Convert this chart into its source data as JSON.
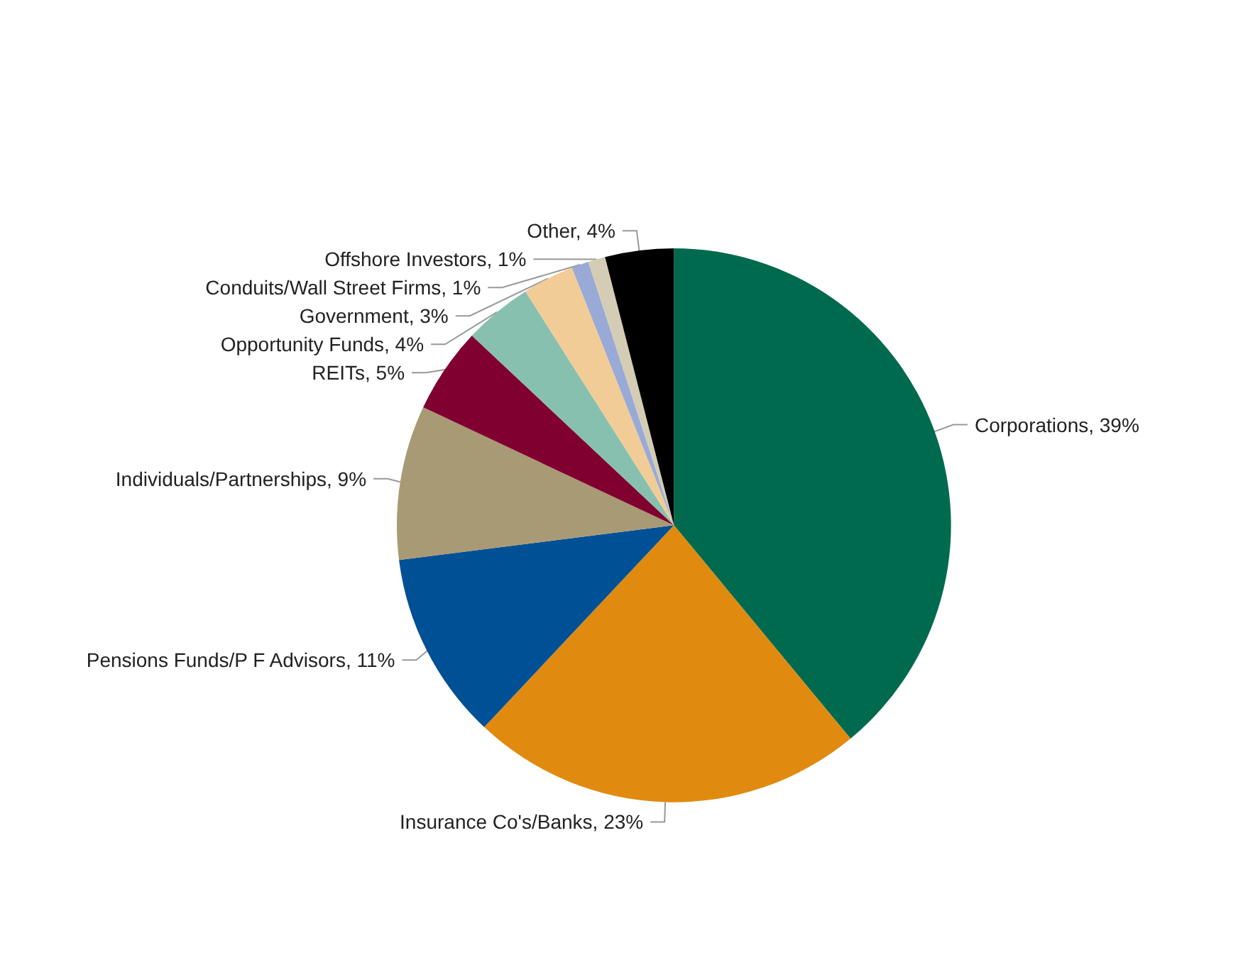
{
  "chart_data": {
    "type": "pie",
    "categories": [
      "Corporations",
      "Insurance Co's/Banks",
      "Pensions Funds/P F Advisors",
      "Individuals/Partnerships",
      "REITs",
      "Opportunity Funds",
      "Government",
      "Conduits/Wall Street Firms",
      "Offshore Investors",
      "Other"
    ],
    "values": [
      39,
      23,
      11,
      9,
      5,
      4,
      3,
      1,
      1,
      4
    ],
    "value_labels": [
      "39%",
      "23%",
      "11%",
      "9%",
      "5%",
      "4%",
      "3%",
      "1%",
      "1%",
      "4%"
    ],
    "colors": [
      "#006a4e",
      "#e08a10",
      "#005096",
      "#a89a74",
      "#800030",
      "#88c0b0",
      "#f2cc96",
      "#99aad6",
      "#d4ccb4",
      "#000000"
    ],
    "legend": false
  }
}
